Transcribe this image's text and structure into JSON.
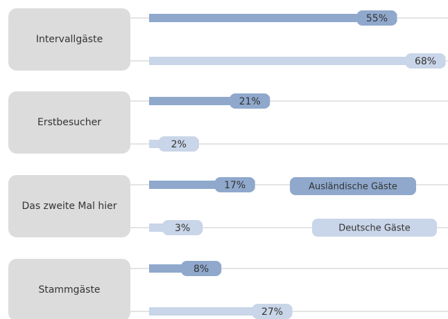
{
  "chart_data": {
    "type": "bar",
    "orientation": "horizontal",
    "categories": [
      "Intervallgäste",
      "Erstbesucher",
      "Das zweite Mal hier",
      "Stammgäste"
    ],
    "series": [
      {
        "name": "Ausländische Gäste",
        "color": "#8fa8cc",
        "values": [
          55,
          21,
          17,
          8
        ],
        "value_labels": [
          "55%",
          "21%",
          "17%",
          "8%"
        ]
      },
      {
        "name": "Deutsche Gäste",
        "color": "#c9d5e8",
        "values": [
          68,
          2,
          3,
          27
        ],
        "value_labels": [
          "68%",
          "2%",
          "3%",
          "27%"
        ]
      }
    ]
  }
}
